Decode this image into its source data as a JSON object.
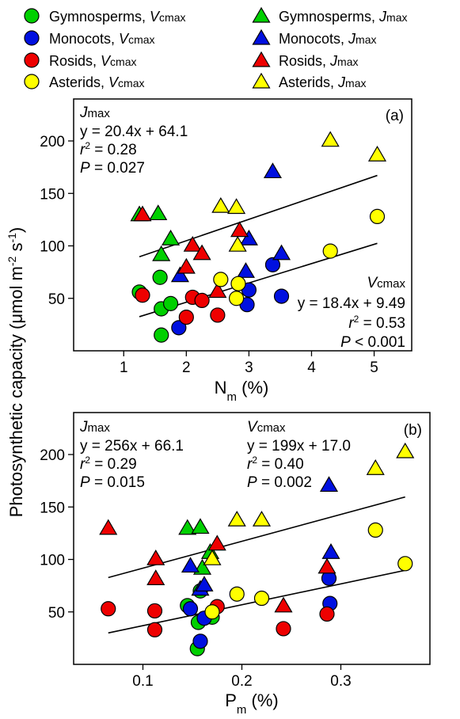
{
  "legend": [
    {
      "label": "Gymnosperms, ",
      "param": "V",
      "sub": "cmax",
      "color": "#00d000",
      "marker": "circle"
    },
    {
      "label": "Gymnosperms, ",
      "param": "J",
      "sub": "max",
      "color": "#00d000",
      "marker": "triangle"
    },
    {
      "label": "Monocots, ",
      "param": "V",
      "sub": "cmax",
      "color": "#0010e0",
      "marker": "circle"
    },
    {
      "label": "Monocots, ",
      "param": "J",
      "sub": "max",
      "color": "#0010e0",
      "marker": "triangle"
    },
    {
      "label": "Rosids, ",
      "param": "V",
      "sub": "cmax",
      "color": "#ee0000",
      "marker": "circle"
    },
    {
      "label": "Rosids, ",
      "param": "J",
      "sub": "max",
      "color": "#ee0000",
      "marker": "triangle"
    },
    {
      "label": "Asterids, ",
      "param": "V",
      "sub": "cmax",
      "color": "#ffff00",
      "marker": "circle"
    },
    {
      "label": "Asterids, ",
      "param": "J",
      "sub": "max",
      "color": "#ffff00",
      "marker": "triangle"
    }
  ],
  "colors": {
    "Gymnosperms": "#00d000",
    "Monocots": "#0010e0",
    "Rosids": "#ee0000",
    "Asterids": "#ffff00"
  },
  "ylabel": {
    "main": "Photosynthetic capacity (μmol m",
    "exp1": "-2",
    "mid": " s",
    "exp2": "-1",
    "end": ")"
  },
  "panels": {
    "a": {
      "tag": "(a)",
      "xlabel": {
        "main": "N",
        "sub": "m",
        "end": " (%)"
      },
      "jmax": {
        "name_i": "J",
        "name_rest": "max",
        "eq": "y = 20.4x + 64.1",
        "r2": " = 0.28",
        "p": " = 0.027"
      },
      "vcmax": {
        "name_i": "V",
        "name_rest": "cmax",
        "eq": "y = 18.4x + 9.49",
        "r2": " = 0.53",
        "p": " < 0.001"
      }
    },
    "b": {
      "tag": "(b)",
      "xlabel": {
        "main": "P",
        "sub": "m",
        "end": " (%)"
      },
      "jmax": {
        "name_i": "J",
        "name_rest": "max",
        "eq": "y = 256x + 66.1",
        "r2": " = 0.29",
        "p": " = 0.015"
      },
      "vcmax": {
        "name_i": "V",
        "name_rest": "cmax",
        "eq": "y = 199x + 17.0",
        "r2": " = 0.40",
        "p": " = 0.002"
      }
    }
  },
  "chart_data": [
    {
      "type": "scatter",
      "panel": "a",
      "xlim": [
        0.2,
        5.6
      ],
      "ylim": [
        0,
        240
      ],
      "xticks": [
        1,
        2,
        3,
        4,
        5
      ],
      "yticks": [
        50,
        100,
        150,
        200
      ],
      "xticklabels": [
        "1",
        "2",
        "3",
        "4",
        "5"
      ],
      "yticklabels": [
        "50",
        "100",
        "150",
        "200"
      ],
      "fits": [
        {
          "name": "Jmax",
          "slope": 20.4,
          "intercept": 64.1,
          "x_range": [
            1.25,
            5.05
          ]
        },
        {
          "name": "Vcmax",
          "slope": 18.4,
          "intercept": 9.49,
          "x_range": [
            1.25,
            5.05
          ]
        }
      ],
      "series": [
        {
          "name": "Gymnosperms, Vcmax",
          "group": "Gymnosperms",
          "marker": "circle",
          "points": [
            [
              1.25,
              56
            ],
            [
              1.58,
              70
            ],
            [
              1.6,
              40
            ],
            [
              1.6,
              15
            ],
            [
              1.75,
              45
            ]
          ]
        },
        {
          "name": "Gymnosperms, Jmax",
          "group": "Gymnosperms",
          "marker": "triangle",
          "points": [
            [
              1.25,
              130
            ],
            [
              1.55,
              131
            ],
            [
              1.6,
              92
            ],
            [
              1.75,
              107
            ]
          ]
        },
        {
          "name": "Monocots, Vcmax",
          "group": "Monocots",
          "marker": "circle",
          "points": [
            [
              1.88,
              22
            ],
            [
              2.97,
              44
            ],
            [
              3.0,
              58
            ],
            [
              3.38,
              82
            ],
            [
              3.52,
              52
            ]
          ]
        },
        {
          "name": "Monocots, Jmax",
          "group": "Monocots",
          "marker": "triangle",
          "points": [
            [
              1.9,
              72
            ],
            [
              2.95,
              76
            ],
            [
              3.0,
              107
            ],
            [
              3.38,
              171
            ],
            [
              3.52,
              93
            ]
          ]
        },
        {
          "name": "Rosids, Vcmax",
          "group": "Rosids",
          "marker": "circle",
          "points": [
            [
              1.3,
              53
            ],
            [
              2.0,
              32
            ],
            [
              2.1,
              51
            ],
            [
              2.25,
              48
            ],
            [
              2.5,
              34
            ]
          ]
        },
        {
          "name": "Rosids, Jmax",
          "group": "Rosids",
          "marker": "triangle",
          "points": [
            [
              1.3,
              130
            ],
            [
              2.0,
              80
            ],
            [
              2.1,
              101
            ],
            [
              2.25,
              93
            ],
            [
              2.5,
              57
            ],
            [
              2.85,
              115
            ]
          ]
        },
        {
          "name": "Asterids, Vcmax",
          "group": "Asterids",
          "marker": "circle",
          "points": [
            [
              2.55,
              68
            ],
            [
              2.8,
              50
            ],
            [
              2.83,
              64
            ],
            [
              4.3,
              95
            ],
            [
              5.05,
              128
            ]
          ]
        },
        {
          "name": "Asterids, Jmax",
          "group": "Asterids",
          "marker": "triangle",
          "points": [
            [
              2.55,
              138
            ],
            [
              2.8,
              137
            ],
            [
              2.82,
              101
            ],
            [
              4.3,
              201
            ],
            [
              5.05,
              187
            ]
          ]
        }
      ]
    },
    {
      "type": "scatter",
      "panel": "b",
      "xlim": [
        0.03,
        0.39
      ],
      "ylim": [
        0,
        240
      ],
      "xticks": [
        0.1,
        0.2,
        0.3
      ],
      "yticks": [
        50,
        100,
        150,
        200
      ],
      "xticklabels": [
        "0.1",
        "0.2",
        "0.3"
      ],
      "yticklabels": [
        "50",
        "100",
        "150",
        "200"
      ],
      "fits": [
        {
          "name": "Jmax",
          "slope": 256,
          "intercept": 66.1,
          "x_range": [
            0.065,
            0.365
          ]
        },
        {
          "name": "Vcmax",
          "slope": 199,
          "intercept": 17.0,
          "x_range": [
            0.065,
            0.365
          ]
        }
      ],
      "series": [
        {
          "name": "Gymnosperms, Vcmax",
          "group": "Gymnosperms",
          "marker": "circle",
          "points": [
            [
              0.145,
              56
            ],
            [
              0.156,
              40
            ],
            [
              0.155,
              15
            ],
            [
              0.158,
              70
            ],
            [
              0.17,
              45
            ]
          ]
        },
        {
          "name": "Gymnosperms, Jmax",
          "group": "Gymnosperms",
          "marker": "triangle",
          "points": [
            [
              0.145,
              130
            ],
            [
              0.158,
              131
            ],
            [
              0.16,
              92
            ],
            [
              0.168,
              107
            ]
          ]
        },
        {
          "name": "Monocots, Vcmax",
          "group": "Monocots",
          "marker": "circle",
          "points": [
            [
              0.148,
              53
            ],
            [
              0.158,
              22
            ],
            [
              0.162,
              44
            ],
            [
              0.288,
              82
            ],
            [
              0.289,
              58
            ]
          ]
        },
        {
          "name": "Monocots, Jmax",
          "group": "Monocots",
          "marker": "triangle",
          "points": [
            [
              0.148,
              94
            ],
            [
              0.158,
              72
            ],
            [
              0.162,
              76
            ],
            [
              0.288,
              171
            ],
            [
              0.29,
              107
            ]
          ]
        },
        {
          "name": "Rosids, Vcmax",
          "group": "Rosids",
          "marker": "circle",
          "points": [
            [
              0.065,
              53
            ],
            [
              0.112,
              51
            ],
            [
              0.112,
              33
            ],
            [
              0.175,
              55
            ],
            [
              0.242,
              34
            ],
            [
              0.286,
              48
            ]
          ]
        },
        {
          "name": "Rosids, Jmax",
          "group": "Rosids",
          "marker": "triangle",
          "points": [
            [
              0.065,
              130
            ],
            [
              0.113,
              101
            ],
            [
              0.113,
              82
            ],
            [
              0.175,
              115
            ],
            [
              0.242,
              56
            ],
            [
              0.286,
              93
            ]
          ]
        },
        {
          "name": "Asterids, Vcmax",
          "group": "Asterids",
          "marker": "circle",
          "points": [
            [
              0.17,
              50
            ],
            [
              0.195,
              67
            ],
            [
              0.22,
              63
            ],
            [
              0.335,
              128
            ],
            [
              0.365,
              96
            ]
          ]
        },
        {
          "name": "Asterids, Jmax",
          "group": "Asterids",
          "marker": "triangle",
          "points": [
            [
              0.17,
              101
            ],
            [
              0.195,
              138
            ],
            [
              0.22,
              138
            ],
            [
              0.335,
              187
            ],
            [
              0.365,
              203
            ]
          ]
        }
      ]
    }
  ]
}
